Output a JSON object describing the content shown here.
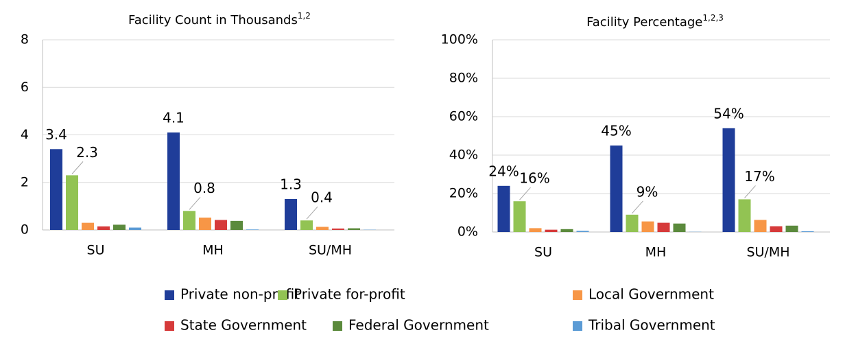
{
  "chart_data": [
    {
      "type": "bar",
      "title": "Facility Count in Thousands",
      "title_superscript": "1,2",
      "categories": [
        "SU",
        "MH",
        "SU/MH"
      ],
      "ylim": [
        0,
        8
      ],
      "yticks": [
        0,
        2,
        4,
        6,
        8
      ],
      "grid": true,
      "series": [
        {
          "name": "Private non-profit",
          "color": "#1f3d99",
          "values": [
            3.4,
            4.1,
            1.3
          ],
          "data_labels": true
        },
        {
          "name": "Private for-profit",
          "color": "#92c353",
          "values": [
            2.3,
            0.8,
            0.4
          ],
          "data_labels": true
        },
        {
          "name": "Local Government",
          "color": "#f79646",
          "values": [
            0.3,
            0.52,
            0.13
          ]
        },
        {
          "name": "State Government",
          "color": "#d63a3a",
          "values": [
            0.15,
            0.42,
            0.06
          ]
        },
        {
          "name": "Federal Government",
          "color": "#5b8a3c",
          "values": [
            0.22,
            0.38,
            0.07
          ]
        },
        {
          "name": "Tribal Government",
          "color": "#5b9bd5",
          "values": [
            0.1,
            0.02,
            0.01
          ]
        }
      ]
    },
    {
      "type": "bar",
      "title": "Facility Percentage",
      "title_superscript": "1,2,3",
      "categories": [
        "SU",
        "MH",
        "SU/MH"
      ],
      "ylim": [
        0,
        100
      ],
      "yticks": [
        {
          "value": 0,
          "label": "0%"
        },
        {
          "value": 20,
          "label": "20%"
        },
        {
          "value": 40,
          "label": "40%"
        },
        {
          "value": 60,
          "label": "60%"
        },
        {
          "value": 80,
          "label": "80%"
        },
        {
          "value": 100,
          "label": "100%"
        }
      ],
      "grid": true,
      "series": [
        {
          "name": "Private non-profit",
          "color": "#1f3d99",
          "values": [
            24,
            45,
            54
          ],
          "value_labels": [
            "24%",
            "45%",
            "54%"
          ]
        },
        {
          "name": "Private for-profit",
          "color": "#92c353",
          "values": [
            16,
            9,
            17
          ],
          "value_labels": [
            "16%",
            "9%",
            "17%"
          ]
        },
        {
          "name": "Local Government",
          "color": "#f79646",
          "values": [
            2,
            5.5,
            6.3
          ]
        },
        {
          "name": "State Government",
          "color": "#d63a3a",
          "values": [
            1.2,
            4.8,
            3
          ]
        },
        {
          "name": "Federal Government",
          "color": "#5b8a3c",
          "values": [
            1.5,
            4.4,
            3.3
          ]
        },
        {
          "name": "Tribal Government",
          "color": "#5b9bd5",
          "values": [
            0.6,
            0.1,
            0.4
          ]
        }
      ]
    }
  ]
}
